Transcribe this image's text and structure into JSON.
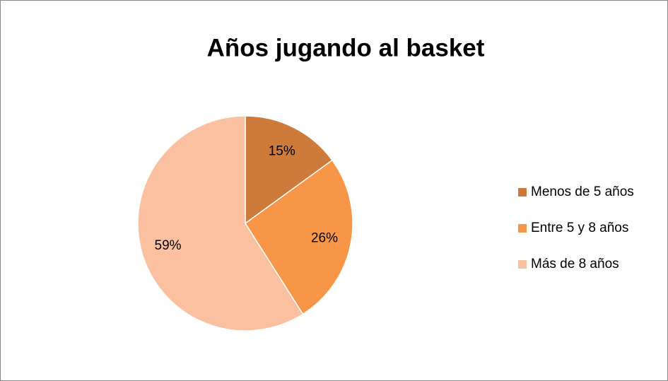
{
  "chart_data": {
    "type": "pie",
    "title": "Años jugando al basket",
    "categories": [
      "Menos de 5 años",
      "Entre 5 y 8 años",
      "Más de 8 años"
    ],
    "values": [
      15,
      26,
      59
    ],
    "value_labels": [
      "15%",
      "26%",
      "59%"
    ],
    "colors": [
      "#cd7a3a",
      "#f79646",
      "#fac09f"
    ],
    "legend": "right"
  }
}
